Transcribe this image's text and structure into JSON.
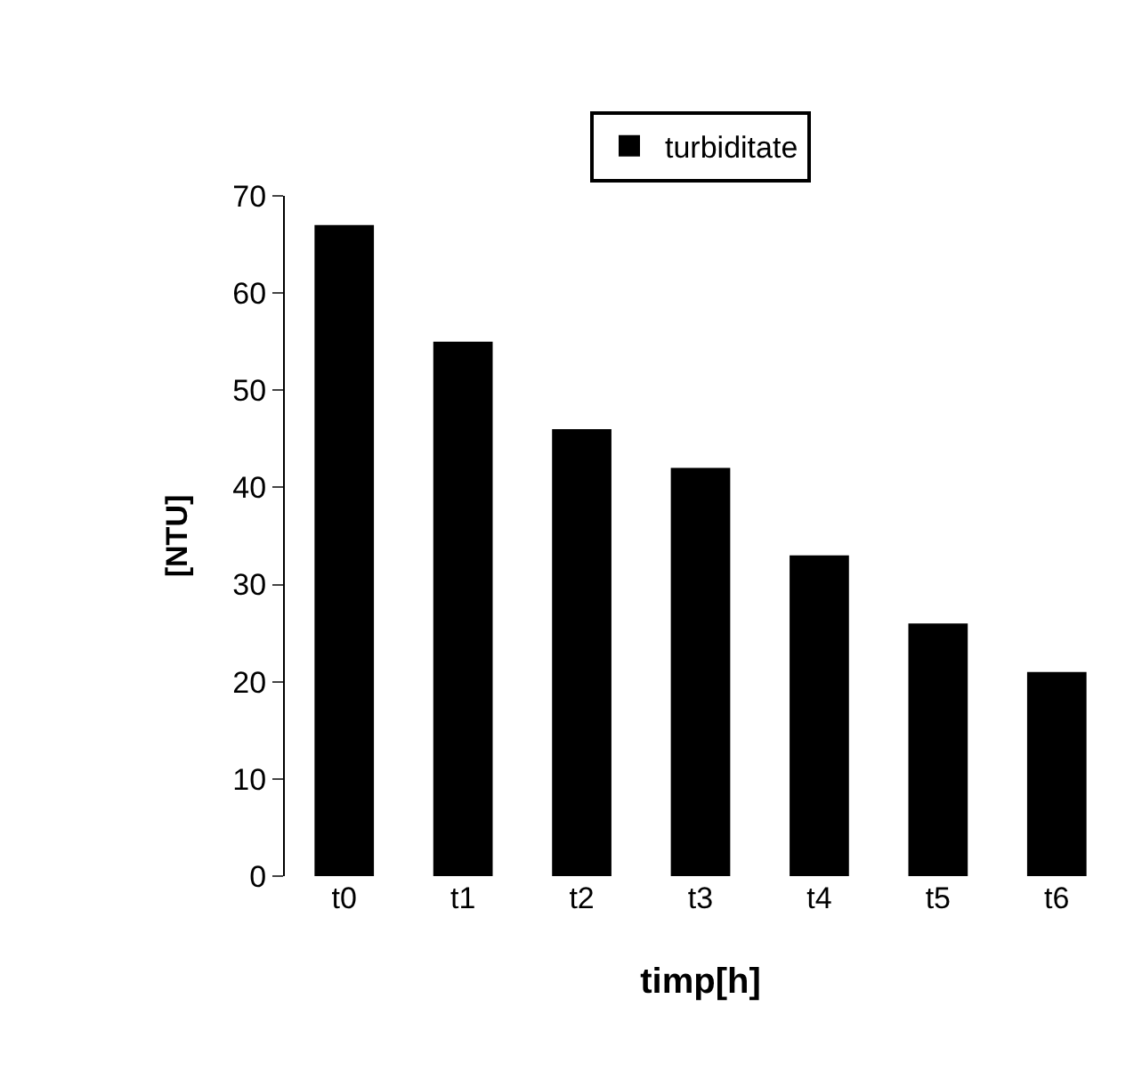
{
  "chart_data": {
    "type": "bar",
    "xlabel": "timp[h]",
    "ylabel": "[NTU]",
    "categories": [
      "t0",
      "t1",
      "t2",
      "t3",
      "t4",
      "t5",
      "t6"
    ],
    "series": [
      {
        "name": "turbiditate",
        "color": "#000000",
        "values": [
          67,
          55,
          46,
          42,
          33,
          26,
          21
        ]
      }
    ],
    "ylim": [
      0,
      70
    ],
    "yticks": [
      0,
      10,
      20,
      30,
      40,
      50,
      60,
      70
    ],
    "grid": false,
    "legend": "top"
  }
}
